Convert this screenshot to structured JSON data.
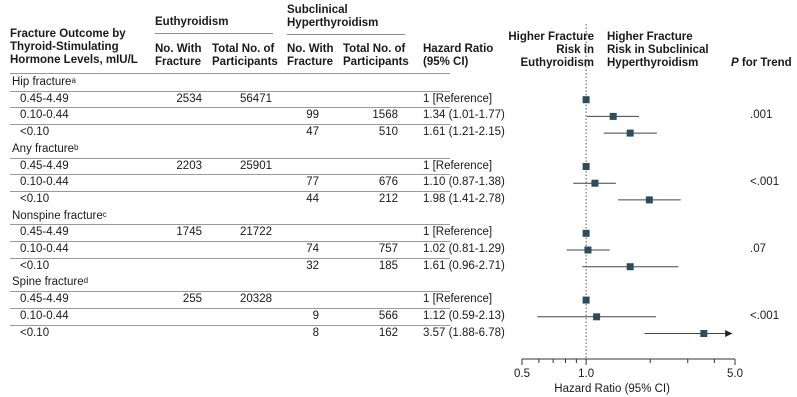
{
  "headers": {
    "outcome": "Fracture Outcome by Thyroid-Stimulating Hormone Levels, mIU/L",
    "euthyroidism": "Euthyroidism",
    "subclinical": "Subclinical Hyperthyroidism",
    "eu_no_fracture": "No. With Fracture",
    "eu_total": "Total No. of Participants",
    "sh_no_fracture": "No. With Fracture",
    "sh_total": "Total No. of Participants",
    "hazard_ratio": "Hazard Ratio (95% CI)",
    "higher_eu": "Higher Fracture Risk in Euthyroidism",
    "higher_sh": "Higher Fracture Risk in Subclinical Hyperthyroidism",
    "p_trend": "P for Trend"
  },
  "groups": [
    {
      "label": "Hip fracture",
      "sup": "a",
      "p_trend": ".001",
      "rows": [
        {
          "tsh": "0.45-4.49",
          "eu_n": "2534",
          "eu_total": "56471",
          "sh_n": "",
          "sh_total": "",
          "hr_text": "1 [Reference]"
        },
        {
          "tsh": "0.10-0.44",
          "eu_n": "",
          "eu_total": "",
          "sh_n": "99",
          "sh_total": "1568",
          "hr_text": "1.34 (1.01-1.77)"
        },
        {
          "tsh": "<0.10",
          "eu_n": "",
          "eu_total": "",
          "sh_n": "47",
          "sh_total": "510",
          "hr_text": "1.61 (1.21-2.15)"
        }
      ]
    },
    {
      "label": "Any fracture",
      "sup": "b",
      "p_trend": "<.001",
      "rows": [
        {
          "tsh": "0.45-4.49",
          "eu_n": "2203",
          "eu_total": "25901",
          "sh_n": "",
          "sh_total": "",
          "hr_text": "1 [Reference]"
        },
        {
          "tsh": "0.10-0.44",
          "eu_n": "",
          "eu_total": "",
          "sh_n": "77",
          "sh_total": "676",
          "hr_text": "1.10 (0.87-1.38)"
        },
        {
          "tsh": "<0.10",
          "eu_n": "",
          "eu_total": "",
          "sh_n": "44",
          "sh_total": "212",
          "hr_text": "1.98 (1.41-2.78)"
        }
      ]
    },
    {
      "label": "Nonspine fracture",
      "sup": "c",
      "p_trend": ".07",
      "rows": [
        {
          "tsh": "0.45-4.49",
          "eu_n": "1745",
          "eu_total": "21722",
          "sh_n": "",
          "sh_total": "",
          "hr_text": "1 [Reference]"
        },
        {
          "tsh": "0.10-0.44",
          "eu_n": "",
          "eu_total": "",
          "sh_n": "74",
          "sh_total": "757",
          "hr_text": "1.02 (0.81-1.29)"
        },
        {
          "tsh": "<0.10",
          "eu_n": "",
          "eu_total": "",
          "sh_n": "32",
          "sh_total": "185",
          "hr_text": "1.61 (0.96-2.71)"
        }
      ]
    },
    {
      "label": "Spine fracture",
      "sup": "d",
      "p_trend": "<.001",
      "rows": [
        {
          "tsh": "0.45-4.49",
          "eu_n": "255",
          "eu_total": "20328",
          "sh_n": "",
          "sh_total": "",
          "hr_text": "1 [Reference]"
        },
        {
          "tsh": "0.10-0.44",
          "eu_n": "",
          "eu_total": "",
          "sh_n": "9",
          "sh_total": "566",
          "hr_text": "1.12 (0.59-2.13)"
        },
        {
          "tsh": "<0.10",
          "eu_n": "",
          "eu_total": "",
          "sh_n": "8",
          "sh_total": "162",
          "hr_text": "3.57 (1.88-6.78)"
        }
      ]
    }
  ],
  "chart_data": {
    "type": "scatter",
    "xlabel": "Hazard Ratio (95% CI)",
    "scale": "log",
    "xlim": [
      0.5,
      5.0
    ],
    "ticks": [
      {
        "value": 0.5,
        "label": "0.5"
      },
      {
        "value": 1.0,
        "label": "1.0"
      },
      {
        "value": 5.0,
        "label": "5.0"
      }
    ],
    "minor_ticks": [
      0.6,
      0.7,
      0.8,
      0.9,
      2,
      3,
      4
    ],
    "reference_line": 1.0,
    "marker_color": "#2e4d5c",
    "points": [
      {
        "hr": 1.0,
        "lo": null,
        "hi": null
      },
      {
        "hr": 1.34,
        "lo": 1.01,
        "hi": 1.77
      },
      {
        "hr": 1.61,
        "lo": 1.21,
        "hi": 2.15
      },
      {
        "hr": 1.0,
        "lo": null,
        "hi": null
      },
      {
        "hr": 1.1,
        "lo": 0.87,
        "hi": 1.38
      },
      {
        "hr": 1.98,
        "lo": 1.41,
        "hi": 2.78
      },
      {
        "hr": 1.0,
        "lo": null,
        "hi": null
      },
      {
        "hr": 1.02,
        "lo": 0.81,
        "hi": 1.29
      },
      {
        "hr": 1.61,
        "lo": 0.96,
        "hi": 2.71
      },
      {
        "hr": 1.0,
        "lo": null,
        "hi": null
      },
      {
        "hr": 1.12,
        "lo": 0.59,
        "hi": 2.13
      },
      {
        "hr": 3.57,
        "lo": 1.88,
        "hi": 6.78
      }
    ]
  }
}
